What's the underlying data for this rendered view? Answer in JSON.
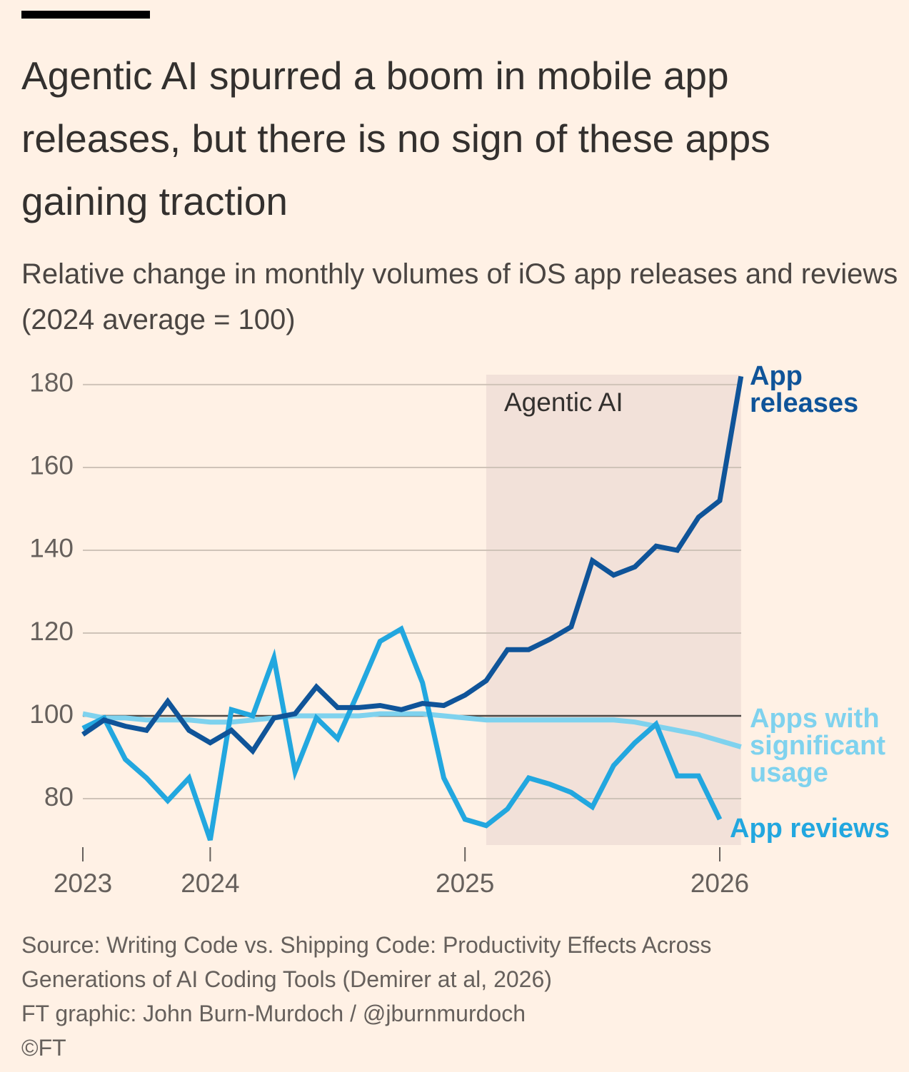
{
  "chart_data": {
    "type": "line",
    "title": "Agentic AI spurred a boom in mobile app releases, but there is no sign of these apps gaining traction",
    "subtitle": "Relative change in monthly volumes of iOS app releases and reviews (2024 average = 100)",
    "source": [
      "Source: Writing Code vs. Shipping Code: Productivity Effects Across Generations of AI Coding Tools (Demirer at al, 2026)",
      "FT graphic: John Burn-Murdoch / @jburnmurdoch",
      "©FT"
    ],
    "categories": [
      "2023",
      null,
      null,
      null,
      null,
      null,
      "2024",
      null,
      null,
      null,
      null,
      null,
      null,
      null,
      null,
      null,
      null,
      null,
      "2025",
      null,
      null,
      null,
      null,
      null,
      null,
      null,
      null,
      null,
      null,
      null,
      "2026",
      null
    ],
    "series": [
      {
        "name": "Apps with significant usage",
        "color": "#7fd2ee",
        "values": [
          100.5,
          99.5,
          99.5,
          99,
          99,
          99,
          98.5,
          98.5,
          99,
          99.5,
          100,
          100,
          100,
          100,
          100.5,
          100.5,
          100.5,
          100,
          99.5,
          99,
          99,
          99,
          99,
          99,
          99,
          99,
          98.5,
          97.5,
          96.5,
          95.5,
          94,
          92.5
        ]
      },
      {
        "name": "App reviews",
        "color": "#22a7df",
        "values": [
          97,
          99.5,
          89.5,
          85,
          79.5,
          85,
          70,
          101.5,
          100,
          114,
          86.5,
          99.5,
          94.5,
          106,
          118,
          121,
          108,
          85,
          75,
          73.5,
          77.5,
          85,
          83.5,
          81.5,
          78,
          88,
          93.5,
          98,
          85.5,
          85.5,
          75,
          null
        ]
      },
      {
        "name": "App releases",
        "color": "#0f5499",
        "values": [
          95.5,
          99,
          97.5,
          96.5,
          103.5,
          96.5,
          93.5,
          96.5,
          91.5,
          99.5,
          100.5,
          107,
          102,
          102,
          102.5,
          101.5,
          103,
          102.5,
          105,
          108.5,
          116,
          116,
          118.5,
          121.5,
          137.5,
          134,
          136,
          141,
          140,
          148,
          152,
          182
        ]
      }
    ],
    "ylim": [
      68.8,
      182.4
    ],
    "yticks": [
      80,
      100,
      120,
      140,
      160,
      180
    ],
    "reference_line": 100,
    "grid": true,
    "shaded_region": {
      "label": "Agentic AI",
      "start_index": 19,
      "end_index": 31
    }
  }
}
